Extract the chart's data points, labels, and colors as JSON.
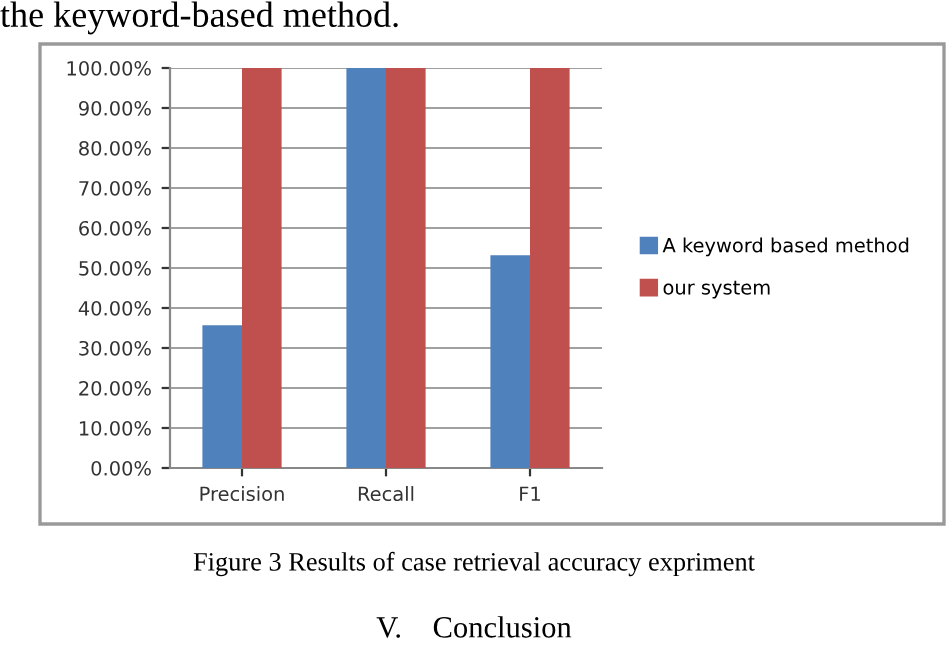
{
  "chart_data": {
    "type": "bar",
    "categories": [
      "Precision",
      "Recall",
      "F1"
    ],
    "series": [
      {
        "name": "A keyword based method",
        "color": "#4f81bd",
        "values": [
          35.7,
          100,
          53.2
        ]
      },
      {
        "name": "our system",
        "color": "#c0504d",
        "values": [
          100,
          100,
          100
        ]
      }
    ],
    "ylim": [
      0,
      100
    ],
    "yticks": [
      {
        "value": 0,
        "label": "0.00%"
      },
      {
        "value": 10,
        "label": "10.00%"
      },
      {
        "value": 20,
        "label": "20.00%"
      },
      {
        "value": 30,
        "label": "30.00%"
      },
      {
        "value": 40,
        "label": "40.00%"
      },
      {
        "value": 50,
        "label": "50.00%"
      },
      {
        "value": 60,
        "label": "60.00%"
      },
      {
        "value": 70,
        "label": "70.00%"
      },
      {
        "value": 80,
        "label": "80.00%"
      },
      {
        "value": 90,
        "label": "90.00%"
      },
      {
        "value": 100,
        "label": "100.00%"
      }
    ],
    "grid": "y",
    "legend": "right",
    "annotations": [
      "the keyword-based method.",
      "Figure 3 Results of case retrieval accuracy expriment",
      "V.    Conclusion"
    ]
  }
}
